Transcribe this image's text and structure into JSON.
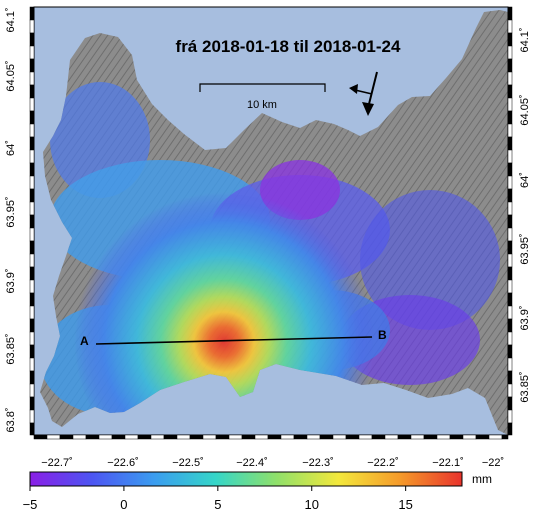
{
  "title": "frá 2018-01-18 til 2018-01-24",
  "scale_bar": {
    "label": "10 km"
  },
  "profile": {
    "start_label": "A",
    "end_label": "B"
  },
  "north_arrow": {
    "icon": "north-arrow-icon"
  },
  "bottom_axis_ticks": [
    "−22.7˚",
    "−22.6˚",
    "−22.5˚",
    "−22.4˚",
    "−22.3˚",
    "−22.2˚",
    "−22.1˚",
    "−22˚"
  ],
  "left_axis_ticks": [
    "64.1˚",
    "64.05˚",
    "64˚",
    "63.95˚",
    "63.9˚",
    "63.85˚",
    "63.8˚"
  ],
  "right_axis_ticks": [
    "64.1˚",
    "64.05˚",
    "64˚",
    "63.95˚",
    "63.9˚",
    "63.85˚"
  ],
  "colorbar": {
    "unit": "mm",
    "min": -5,
    "max": 18,
    "tick_values": [
      -5,
      0,
      5,
      10,
      15
    ],
    "tick_labels": [
      "−5",
      "0",
      "5",
      "10",
      "15"
    ],
    "colors": [
      "#8a1fe6",
      "#4d55f2",
      "#3b9cf0",
      "#35d6c8",
      "#8fe06a",
      "#f3e83c",
      "#f59a2a",
      "#e8332c"
    ]
  },
  "colors": {
    "sea": "#a7bedf",
    "land": "#8c8c8c",
    "frame_dark": "#000000",
    "frame_light": "#ffffff"
  }
}
